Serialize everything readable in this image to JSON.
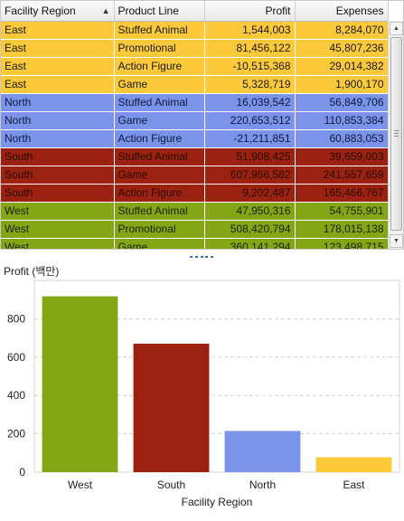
{
  "table": {
    "columns": [
      "Facility Region",
      "Product Line",
      "Profit",
      "Expenses"
    ],
    "sort_indicator": "▲",
    "rows": [
      {
        "region": "East",
        "product": "Stuffed Animal",
        "profit": "1,544,003",
        "expenses": "8,284,070"
      },
      {
        "region": "East",
        "product": "Promotional",
        "profit": "81,456,122",
        "expenses": "45,807,236"
      },
      {
        "region": "East",
        "product": "Action Figure",
        "profit": "-10,515,368",
        "expenses": "29,014,382"
      },
      {
        "region": "East",
        "product": "Game",
        "profit": "5,328,719",
        "expenses": "1,900,170"
      },
      {
        "region": "North",
        "product": "Stuffed Animal",
        "profit": "16,039,542",
        "expenses": "56,849,706"
      },
      {
        "region": "North",
        "product": "Game",
        "profit": "220,653,512",
        "expenses": "110,853,384"
      },
      {
        "region": "North",
        "product": "Action Figure",
        "profit": "-21,211,851",
        "expenses": "60,883,053"
      },
      {
        "region": "South",
        "product": "Stuffed Animal",
        "profit": "51,908,425",
        "expenses": "39,659,003"
      },
      {
        "region": "South",
        "product": "Game",
        "profit": "607,956,582",
        "expenses": "241,557,659"
      },
      {
        "region": "South",
        "product": "Action Figure",
        "profit": "9,202,487",
        "expenses": "165,466,767"
      },
      {
        "region": "West",
        "product": "Stuffed Animal",
        "profit": "47,950,316",
        "expenses": "54,755,901"
      },
      {
        "region": "West",
        "product": "Promotional",
        "profit": "508,420,794",
        "expenses": "178,015,138"
      },
      {
        "region": "West",
        "product": "Game",
        "profit": "360,141,294",
        "expenses": "123,498,715"
      }
    ],
    "region_colors": {
      "East": "#fcc93a",
      "North": "#7b93e8",
      "South": "#9b2210",
      "West": "#84a614"
    },
    "region_text_colors": {
      "East": "#1a1a1a",
      "North": "#0d1a40",
      "South": "#2a0a05",
      "West": "#1a2205"
    }
  },
  "chart_data": {
    "type": "bar",
    "title": "Profit (백만)",
    "xlabel": "Facility Region",
    "ylabel": "",
    "categories": [
      "West",
      "South",
      "North",
      "East"
    ],
    "values": [
      917,
      670,
      215,
      78
    ],
    "colors": [
      "#84a614",
      "#9b2210",
      "#7b93e8",
      "#fcc93a"
    ],
    "ylim": [
      0,
      1000
    ],
    "yticks": [
      0,
      200,
      400,
      600,
      800
    ],
    "grid": true
  }
}
